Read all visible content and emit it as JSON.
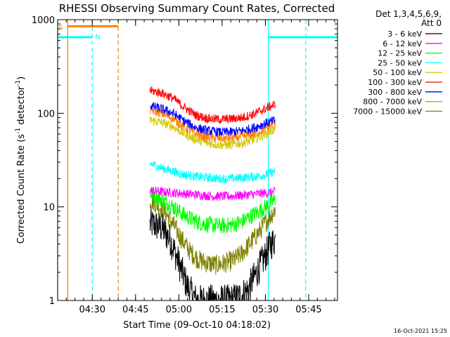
{
  "chart_data": {
    "type": "line",
    "title": "RHESSI Observing Summary Count Rates, Corrected",
    "xlabel": "Start Time (09-Oct-10 04:18:02)",
    "ylabel_main": "Corrected Count Rate (s",
    "ylabel_sup1": "-1",
    "ylabel_mid": " detector",
    "ylabel_sup2": "-1",
    "ylabel_end": ")",
    "x_scale": "time (minutes since 04:18:02)",
    "xlim": [
      0,
      97
    ],
    "y_scale": "log",
    "ylim": [
      1,
      1000
    ],
    "x_ticks": [
      {
        "label": "04:30",
        "t": 12
      },
      {
        "label": "04:45",
        "t": 27
      },
      {
        "label": "05:00",
        "t": 42
      },
      {
        "label": "05:15",
        "t": 57
      },
      {
        "label": "05:30",
        "t": 72
      },
      {
        "label": "05:45",
        "t": 87
      }
    ],
    "y_ticks": [
      {
        "label": "1",
        "v": 1
      },
      {
        "label": "10",
        "v": 10
      },
      {
        "label": "100",
        "v": 100
      },
      {
        "label": "1000",
        "v": 1000
      }
    ],
    "legend": {
      "position": "top-right outside",
      "header_line1": "Det 1,3,4,5,6,9,",
      "header_line2": "Att 0"
    },
    "timestamp": "16-Oct-2021 15:25",
    "series": [
      {
        "name": "3 - 6 keV",
        "color": "#000000",
        "t": [
          32,
          33,
          36,
          39,
          42,
          45,
          48,
          51,
          54,
          57,
          60,
          63,
          66,
          69,
          72,
          74,
          75.5
        ],
        "y": [
          6.5,
          6.5,
          6,
          4.5,
          2.5,
          1.4,
          1,
          1,
          1,
          1,
          1,
          1.1,
          1.3,
          2,
          3,
          4,
          4.5
        ]
      },
      {
        "name": "6 - 12 keV",
        "color": "#ff00ff",
        "t": [
          32,
          36,
          42,
          48,
          54,
          60,
          66,
          72,
          75.5
        ],
        "y": [
          15,
          14.5,
          14,
          13.5,
          13,
          13,
          13.5,
          14,
          14.5
        ]
      },
      {
        "name": "12 - 25 keV",
        "color": "#00ff00",
        "t": [
          32,
          34,
          37,
          40,
          43,
          46,
          49,
          52,
          55,
          58,
          61,
          64,
          67,
          70,
          73,
          75.5
        ],
        "y": [
          14,
          13,
          11.5,
          10,
          8.5,
          7.5,
          6.8,
          6.5,
          6.3,
          6.3,
          6.5,
          7,
          8,
          9,
          10.5,
          12
        ]
      },
      {
        "name": "25 - 50 keV",
        "color": "#00ffff",
        "t": [
          32,
          36,
          40,
          44,
          48,
          52,
          56,
          60,
          64,
          68,
          72,
          75.5
        ],
        "y": [
          29,
          26,
          24,
          22,
          21,
          20.5,
          20,
          20,
          20.5,
          21,
          22,
          24
        ]
      },
      {
        "name": "50 - 100 keV",
        "color": "#d4c800",
        "t": [
          32,
          36,
          40,
          44,
          48,
          52,
          56,
          60,
          64,
          68,
          72,
          75.5
        ],
        "y": [
          85,
          80,
          72,
          60,
          52,
          48,
          46,
          46,
          48,
          52,
          60,
          68
        ]
      },
      {
        "name": "100 - 300 keV",
        "color": "#ff0000",
        "t": [
          32,
          36,
          40,
          44,
          48,
          52,
          56,
          60,
          64,
          68,
          72,
          75.5
        ],
        "y": [
          175,
          165,
          145,
          115,
          95,
          88,
          86,
          87,
          90,
          98,
          112,
          125
        ]
      },
      {
        "name": "300 - 800 keV",
        "color": "#0000ff",
        "t": [
          32,
          36,
          40,
          44,
          48,
          52,
          56,
          60,
          64,
          68,
          72,
          75.5
        ],
        "y": [
          120,
          112,
          100,
          82,
          70,
          65,
          63,
          63,
          65,
          70,
          78,
          84
        ]
      },
      {
        "name": "800 - 7000 keV",
        "color": "#ff7f00",
        "t": [
          32,
          36,
          40,
          44,
          48,
          52,
          56,
          60,
          64,
          68,
          72,
          75.5
        ],
        "y": [
          108,
          100,
          88,
          70,
          60,
          55,
          54,
          54,
          56,
          60,
          68,
          80
        ]
      },
      {
        "name": "7000 - 15000 keV",
        "color": "#808000",
        "t": [
          32,
          34,
          37,
          40,
          43,
          46,
          49,
          52,
          55,
          58,
          61,
          64,
          67,
          70,
          73,
          75.5
        ],
        "y": [
          12,
          11,
          9,
          6.5,
          4.5,
          3.3,
          2.7,
          2.5,
          2.4,
          2.5,
          2.7,
          3.2,
          4.2,
          5.5,
          7.5,
          9.5
        ]
      }
    ],
    "markers": {
      "saa_label": "S",
      "night_label": "N",
      "saa_color": "#ff7f00",
      "night_color": "#00ffff",
      "saa_bar": [
        3.5,
        21
      ],
      "saa_bar_value": 850,
      "night_bars": [
        [
          0,
          12
        ],
        [
          73,
          97
        ]
      ],
      "night_bar_value": 650,
      "solid_lines": [
        {
          "t": 3.5,
          "color": "#ff7f00"
        },
        {
          "t": 73,
          "color": "#00ffff"
        },
        {
          "t": 0,
          "color": "#00ffff"
        }
      ],
      "dashed_lines": [
        {
          "t": 12,
          "color": "#00ffff"
        },
        {
          "t": 21,
          "color": "#ff7f00"
        },
        {
          "t": 86,
          "color": "#00ffff"
        }
      ]
    }
  }
}
